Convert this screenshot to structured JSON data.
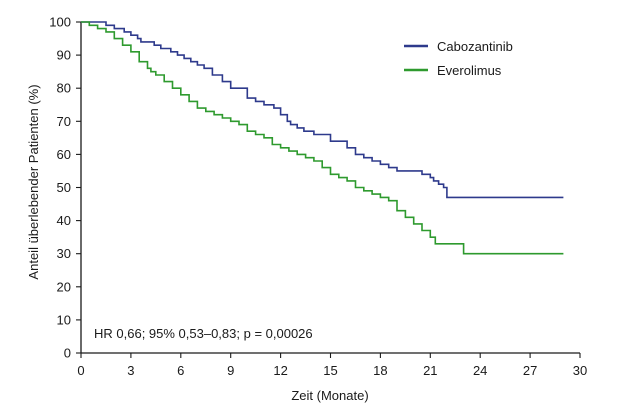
{
  "chart_data": {
    "type": "line",
    "step": true,
    "xlabel": "Zeit (Monate)",
    "ylabel": "Anteil überlebender Patienten (%)",
    "xlim": [
      0,
      30
    ],
    "ylim": [
      0,
      100
    ],
    "xticks": [
      0,
      3,
      6,
      9,
      12,
      15,
      18,
      21,
      24,
      27,
      30
    ],
    "yticks": [
      0,
      10,
      20,
      30,
      40,
      50,
      60,
      70,
      80,
      90,
      100
    ],
    "grid": false,
    "legend_position": "top-right",
    "annotation": "HR 0,66; 95% 0,53–0,83; p = 0,00026",
    "series": [
      {
        "name": "Cabozantinib",
        "color": "#2e3a8c",
        "x": [
          0,
          1.5,
          2,
          2.6,
          3,
          3.4,
          3.6,
          4.4,
          4.8,
          5.4,
          5.8,
          6.2,
          6.6,
          7,
          7.4,
          7.9,
          8.5,
          9,
          10,
          10.5,
          11,
          11.6,
          12,
          12.4,
          12.6,
          13,
          13.4,
          14,
          15,
          16,
          16.5,
          17,
          17.5,
          18,
          18.5,
          19,
          20,
          20.5,
          21,
          21.2,
          21.5,
          21.8,
          22,
          29
        ],
        "y": [
          100,
          99,
          98,
          97,
          96,
          95,
          94,
          93,
          92,
          91,
          90,
          89,
          88,
          87,
          86,
          84,
          82,
          80,
          77,
          76,
          75,
          74,
          72,
          70,
          69,
          68,
          67,
          66,
          64,
          62,
          60,
          59,
          58,
          57,
          56,
          55,
          55,
          54,
          53,
          52,
          51,
          50,
          47,
          47
        ]
      },
      {
        "name": "Everolimus",
        "color": "#2e9a2e",
        "x": [
          0,
          0.5,
          1,
          1.5,
          2,
          2.5,
          3,
          3.5,
          4,
          4.2,
          4.5,
          5,
          5.5,
          6,
          6.5,
          7,
          7.5,
          8,
          8.5,
          9,
          9.5,
          10,
          10.5,
          11,
          11.5,
          12,
          12.5,
          13,
          13.5,
          14,
          14.5,
          15,
          15.5,
          16,
          16.5,
          17,
          17.5,
          18,
          18.5,
          19,
          19.5,
          20,
          20.5,
          21,
          21.3,
          22,
          23,
          29
        ],
        "y": [
          100,
          99,
          98,
          97,
          95,
          93,
          91,
          88,
          86,
          85,
          84,
          82,
          80,
          78,
          76,
          74,
          73,
          72,
          71,
          70,
          69,
          67,
          66,
          65,
          63,
          62,
          61,
          60,
          59,
          58,
          56,
          54,
          53,
          52,
          50,
          49,
          48,
          47,
          46,
          43,
          41,
          39,
          37,
          35,
          33,
          33,
          30,
          30
        ]
      }
    ]
  }
}
